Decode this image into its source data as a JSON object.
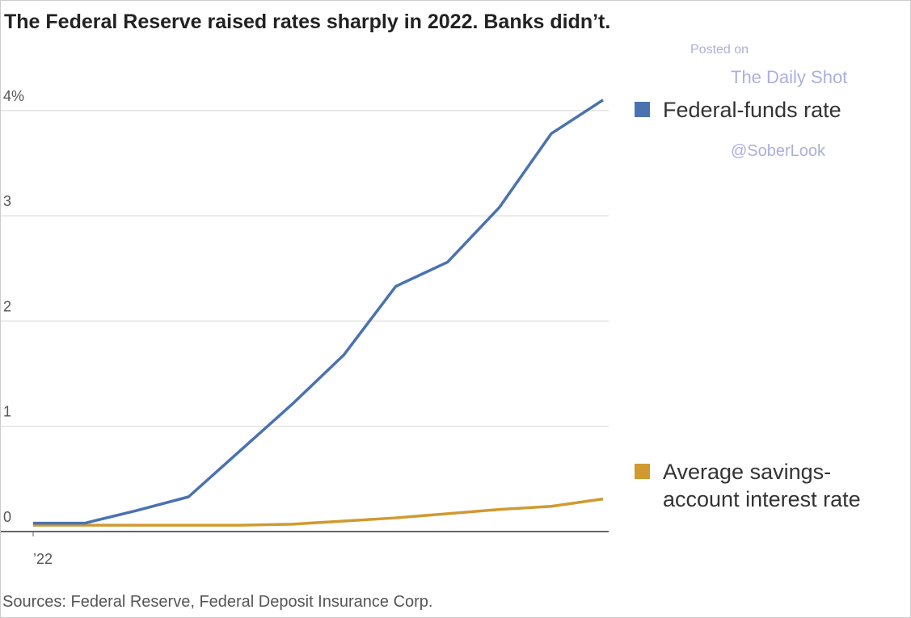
{
  "chart_data": {
    "type": "line",
    "title": "The Federal Reserve raised rates sharply in 2022. Banks didn’t.",
    "source": "Sources: Federal Reserve, Federal Deposit Insurance Corp.",
    "watermark": [
      "Posted on",
      "The Daily Shot",
      "@SoberLook"
    ],
    "categories": [
      "’22",
      null,
      null,
      null,
      null,
      null,
      null,
      null,
      null,
      null,
      null,
      null
    ],
    "series": [
      {
        "name": "Federal-funds rate",
        "color": "#4a72b0",
        "values": [
          0.08,
          0.08,
          0.2,
          0.33,
          0.77,
          1.21,
          1.68,
          2.33,
          2.56,
          3.08,
          3.78,
          4.1
        ]
      },
      {
        "name": "Average savings-account interest rate",
        "color": "#d09a30",
        "values": [
          0.06,
          0.06,
          0.06,
          0.06,
          0.06,
          0.07,
          0.1,
          0.13,
          0.17,
          0.21,
          0.24,
          0.31
        ]
      }
    ],
    "ylim": [
      0,
      4.2
    ],
    "yticks": [
      0,
      1,
      2,
      3,
      {
        "value": 4,
        "label": "4%"
      }
    ],
    "grid": true
  }
}
